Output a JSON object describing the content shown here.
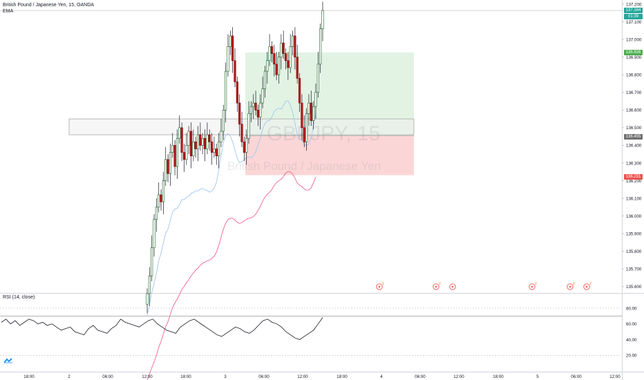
{
  "header": {
    "symbol_line": "British Pound / Japanese Yen, 15, OANDA",
    "indicator_label": "EMA"
  },
  "watermark": {
    "ticker": "GBPJPY, 15",
    "name": "British Pound / Japanese Yen"
  },
  "rsi": {
    "label": "RSI (14, close)",
    "ticks": [
      "80.00",
      "60.00",
      "40.00",
      "20.00"
    ]
  },
  "price_axis": {
    "ticks": [
      "137.200",
      "137.100",
      "137.000",
      "136.900",
      "136.800",
      "136.700",
      "136.600",
      "136.500",
      "136.400",
      "136.300",
      "136.200",
      "136.100",
      "136.000",
      "135.900",
      "135.800",
      "135.700",
      "135.600"
    ],
    "current_price": "137.164",
    "countdown": "01:39",
    "target_price": "136.926",
    "entry_price": "136.455",
    "stop_price": "136.231"
  },
  "time_axis": {
    "ticks": [
      "18:00",
      "2",
      "06:00",
      "12:00",
      "18:00",
      "3",
      "06:00",
      "12:00",
      "18:00",
      "4",
      "06:00",
      "12:00",
      "18:00",
      "5",
      "06:00",
      "12:00"
    ]
  },
  "colors": {
    "up": "#26a69a",
    "down": "#ef5350",
    "candle_up_body": "#ffffff",
    "ema_fast": "#9fc6ec",
    "ema_slow": "#f06292",
    "profit_zone": "#e2f3e4",
    "loss_zone": "#fbd6d6",
    "current_tag": "#26a69a",
    "target_tag": "#4caf50",
    "entry_tag": "#707070",
    "stop_tag": "#ef5350"
  },
  "chart_data": {
    "type": "candlestick",
    "instrument": "British Pound / Japanese Yen",
    "timeframe": "15",
    "source": "OANDA",
    "ylim": [
      135.58,
      137.22
    ],
    "close_series": [
      135.56,
      135.66,
      135.82,
      135.98,
      136.05,
      136.12,
      136.08,
      136.2,
      136.32,
      136.24,
      136.36,
      136.4,
      136.28,
      136.44,
      136.5,
      136.36,
      136.32,
      136.4,
      136.48,
      136.34,
      136.42,
      136.38,
      136.46,
      136.4,
      136.44,
      136.38,
      136.46,
      136.42,
      136.36,
      136.38,
      136.34,
      136.42,
      136.48,
      136.6,
      136.82,
      136.96,
      137.02,
      136.88,
      136.76,
      136.64,
      136.52,
      136.42,
      136.36,
      136.44,
      136.58,
      136.62,
      136.64,
      136.6,
      136.56,
      136.64,
      136.72,
      136.82,
      136.88,
      136.96,
      136.92,
      136.86,
      136.8,
      136.9,
      136.98,
      136.92,
      136.88,
      136.84,
      136.96,
      137.02,
      136.9,
      136.78,
      136.64,
      136.5,
      136.42,
      136.58,
      136.64,
      136.54,
      136.62,
      136.7,
      136.86,
      137.06,
      137.164
    ],
    "rsi_series": [
      62,
      66,
      60,
      64,
      58,
      62,
      66,
      64,
      60,
      62,
      58,
      60,
      56,
      52,
      54,
      56,
      50,
      48,
      46,
      54,
      58,
      52,
      50,
      48,
      54,
      58,
      66,
      62,
      60,
      58,
      56,
      60,
      64,
      66,
      60,
      56,
      52,
      50,
      48,
      56,
      60,
      64,
      66,
      62,
      58,
      54,
      50,
      46,
      44,
      48,
      52,
      56,
      54,
      50,
      48,
      52,
      58,
      64,
      66,
      62,
      60,
      56,
      50,
      46,
      42,
      40,
      44,
      48,
      52,
      60,
      68
    ],
    "rsi_ylim": [
      10,
      90
    ],
    "rsi_levels": [
      30,
      70
    ],
    "risk_reward": {
      "target": 136.926,
      "entry": 136.455,
      "stop": 136.231
    },
    "zone": {
      "top": 136.55,
      "bottom": 136.46
    },
    "events": [
      {
        "at": "4",
        "count": 2
      },
      {
        "at": "06:00",
        "count": 2
      },
      {
        "at": "12:00",
        "count": 0
      },
      {
        "at": "5",
        "count": 2
      },
      {
        "at": "06:00",
        "count": 2
      },
      {
        "at": "12:00",
        "count": 2
      }
    ]
  }
}
